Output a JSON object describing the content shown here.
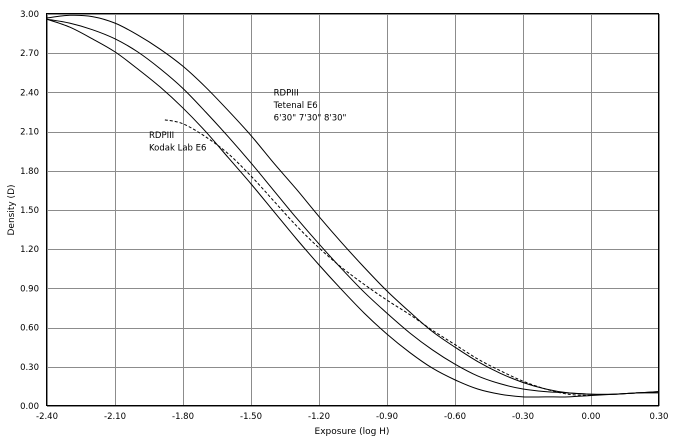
{
  "chart_data": {
    "type": "line",
    "title": "",
    "xlabel": "Exposure (log H)",
    "ylabel": "Density (D)",
    "xlim": [
      -2.4,
      0.3
    ],
    "ylim": [
      0,
      3.0
    ],
    "x_ticks": [
      "-2.40",
      "-2.10",
      "-1.80",
      "-1.50",
      "-1.20",
      "-0.90",
      "-0.60",
      "-0.30",
      "0.00",
      "0.30"
    ],
    "y_ticks": [
      "0.00",
      "0.30",
      "0.60",
      "0.90",
      "1.20",
      "1.50",
      "1.80",
      "2.10",
      "2.40",
      "2.70",
      "3.00"
    ],
    "grid": true,
    "legend": "none",
    "series": [
      {
        "style": "solid",
        "x": [
          -2.4,
          -2.3,
          -2.2,
          -2.1,
          -2.0,
          -1.9,
          -1.8,
          -1.7,
          -1.6,
          -1.5,
          -1.4,
          -1.3,
          -1.2,
          -1.1,
          -1.0,
          -0.9,
          -0.8,
          -0.7,
          -0.6,
          -0.5,
          -0.4,
          -0.3,
          -0.2,
          -0.1,
          0.0,
          0.1,
          0.2,
          0.3
        ],
        "values": [
          2.97,
          2.99,
          2.98,
          2.93,
          2.84,
          2.73,
          2.6,
          2.44,
          2.26,
          2.07,
          1.86,
          1.66,
          1.45,
          1.25,
          1.06,
          0.88,
          0.72,
          0.57,
          0.45,
          0.34,
          0.25,
          0.18,
          0.13,
          0.1,
          0.09,
          0.09,
          0.1,
          0.11
        ]
      },
      {
        "style": "solid",
        "x": [
          -2.4,
          -2.3,
          -2.2,
          -2.1,
          -2.0,
          -1.9,
          -1.8,
          -1.7,
          -1.6,
          -1.5,
          -1.4,
          -1.3,
          -1.2,
          -1.1,
          -1.0,
          -0.9,
          -0.8,
          -0.7,
          -0.6,
          -0.5,
          -0.4,
          -0.3,
          -0.2,
          -0.1,
          0.0,
          0.1,
          0.2,
          0.3
        ],
        "values": [
          2.96,
          2.93,
          2.88,
          2.81,
          2.71,
          2.58,
          2.43,
          2.25,
          2.06,
          1.86,
          1.65,
          1.44,
          1.24,
          1.05,
          0.87,
          0.71,
          0.56,
          0.43,
          0.32,
          0.23,
          0.17,
          0.13,
          0.11,
          0.1,
          0.09,
          0.09,
          0.1,
          0.1
        ]
      },
      {
        "style": "solid",
        "x": [
          -2.4,
          -2.3,
          -2.2,
          -2.1,
          -2.0,
          -1.9,
          -1.8,
          -1.7,
          -1.6,
          -1.5,
          -1.4,
          -1.3,
          -1.2,
          -1.1,
          -1.0,
          -0.9,
          -0.8,
          -0.7,
          -0.6,
          -0.5,
          -0.4,
          -0.3,
          -0.2,
          -0.1,
          0.0,
          0.1,
          0.2,
          0.3
        ],
        "values": [
          2.96,
          2.9,
          2.81,
          2.71,
          2.58,
          2.44,
          2.28,
          2.1,
          1.9,
          1.7,
          1.49,
          1.28,
          1.08,
          0.89,
          0.71,
          0.55,
          0.41,
          0.29,
          0.2,
          0.13,
          0.09,
          0.07,
          0.07,
          0.07,
          0.08,
          0.09,
          0.1,
          0.11
        ]
      },
      {
        "style": "dashed",
        "x": [
          -1.88,
          -1.8,
          -1.7,
          -1.6,
          -1.5,
          -1.4,
          -1.3,
          -1.2,
          -1.1,
          -1.0,
          -0.9,
          -0.8,
          -0.7,
          -0.6,
          -0.5,
          -0.4,
          -0.3,
          -0.2,
          -0.1,
          0.0
        ],
        "values": [
          2.19,
          2.16,
          2.06,
          1.93,
          1.76,
          1.57,
          1.38,
          1.21,
          1.06,
          0.93,
          0.81,
          0.7,
          0.58,
          0.47,
          0.36,
          0.27,
          0.19,
          0.13,
          0.09,
          0.08
        ]
      }
    ],
    "annotations": [
      {
        "lines": [
          "RDPIII",
          "Tetenal E6",
          "6'30\" 7'30\" 8'30\""
        ],
        "x": -1.4,
        "y": 2.375
      },
      {
        "lines": [
          "RDPIII",
          "Kodak Lab E6"
        ],
        "x": -1.95,
        "y": 2.05
      }
    ]
  }
}
